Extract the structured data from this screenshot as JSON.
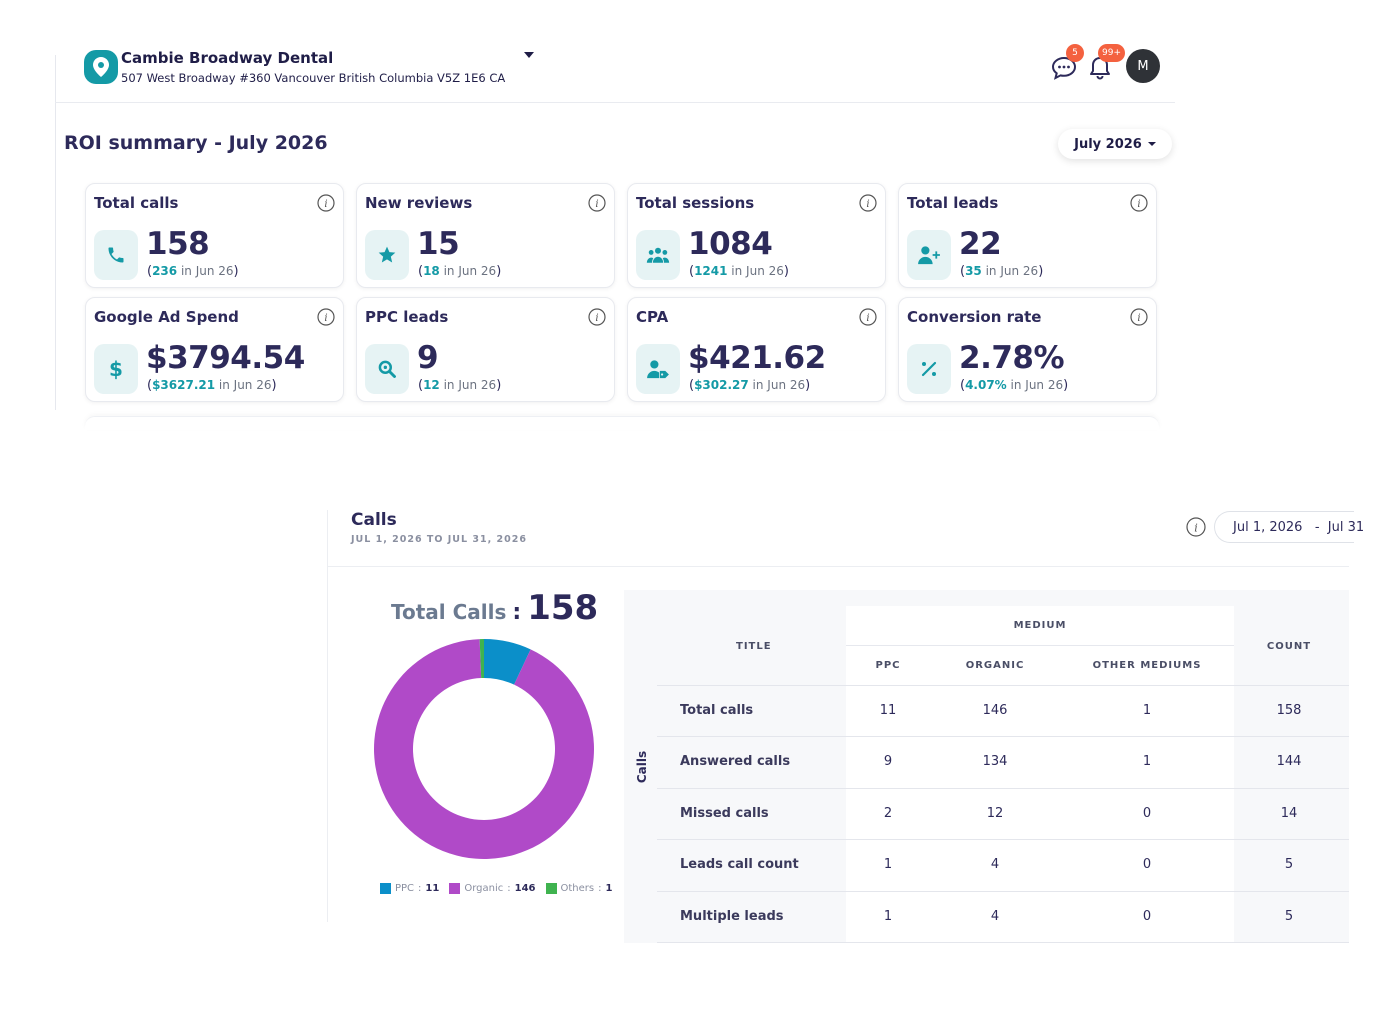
{
  "header": {
    "business_name": "Cambie Broadway Dental",
    "business_address": "507 West Broadway #360 Vancouver British Columbia V5Z 1E6 CA",
    "messages_badge": "5",
    "notifications_badge": "99+",
    "avatar_initial": "M"
  },
  "roi": {
    "title": "ROI summary - July 2026",
    "month_selector": "July 2026",
    "cards": [
      {
        "label": "Total calls",
        "value": "158",
        "prev": "236",
        "prev_suffix": " in Jun 26",
        "icon": "phone-icon"
      },
      {
        "label": "New reviews",
        "value": "15",
        "prev": "18",
        "prev_suffix": " in Jun 26",
        "icon": "star-icon"
      },
      {
        "label": "Total sessions",
        "value": "1084",
        "prev": "1241",
        "prev_suffix": " in Jun 26",
        "icon": "users-icon"
      },
      {
        "label": "Total leads",
        "value": "22",
        "prev": "35",
        "prev_suffix": " in Jun 26",
        "icon": "user-plus-icon"
      },
      {
        "label": "Google Ad Spend",
        "value": "$3794.54",
        "prev": "$3627.21",
        "prev_suffix": " in Jun 26",
        "icon": "dollar-icon"
      },
      {
        "label": "PPC leads",
        "value": "9",
        "prev": "12",
        "prev_suffix": " in Jun 26",
        "icon": "search-icon"
      },
      {
        "label": "CPA",
        "value": "$421.62",
        "prev": "$302.27",
        "prev_suffix": " in Jun 26",
        "icon": "user-tag-icon"
      },
      {
        "label": "Conversion rate",
        "value": "2.78%",
        "prev": "4.07%",
        "prev_suffix": " in Jun 26",
        "icon": "percent-icon"
      }
    ]
  },
  "calls": {
    "title": "Calls",
    "date_range": "JUL 1, 2026 TO JUL 31, 2026",
    "date_picker": "Jul 1, 2026   -  Jul 31",
    "total_label": "Total Calls",
    "total_colon": ":",
    "total_value": "158",
    "legend": [
      {
        "name": "PPC",
        "value": "11",
        "color": "#0b8fc9"
      },
      {
        "name": "Organic",
        "value": "146",
        "color": "#b04ac8"
      },
      {
        "name": "Others",
        "value": "1",
        "color": "#3fb34f"
      }
    ],
    "table": {
      "section_label": "Calls",
      "headers": {
        "title": "TITLE",
        "medium": "MEDIUM",
        "count": "COUNT",
        "ppc": "PPC",
        "organic": "ORGANIC",
        "other": "OTHER MEDIUMS"
      },
      "rows": [
        {
          "title": "Total calls",
          "ppc": "11",
          "organic": "146",
          "other": "1",
          "count": "158"
        },
        {
          "title": "Answered calls",
          "ppc": "9",
          "organic": "134",
          "other": "1",
          "count": "144"
        },
        {
          "title": "Missed calls",
          "ppc": "2",
          "organic": "12",
          "other": "0",
          "count": "14"
        },
        {
          "title": "Leads call count",
          "ppc": "1",
          "organic": "4",
          "other": "0",
          "count": "5"
        },
        {
          "title": "Multiple leads",
          "ppc": "1",
          "organic": "4",
          "other": "0",
          "count": "5"
        }
      ]
    }
  },
  "chart_data": {
    "type": "pie",
    "title": "Total Calls",
    "categories": [
      "PPC",
      "Organic",
      "Others"
    ],
    "values": [
      11,
      146,
      1
    ],
    "colors": [
      "#0b8fc9",
      "#b04ac8",
      "#3fb34f"
    ],
    "legend": "bottom"
  }
}
